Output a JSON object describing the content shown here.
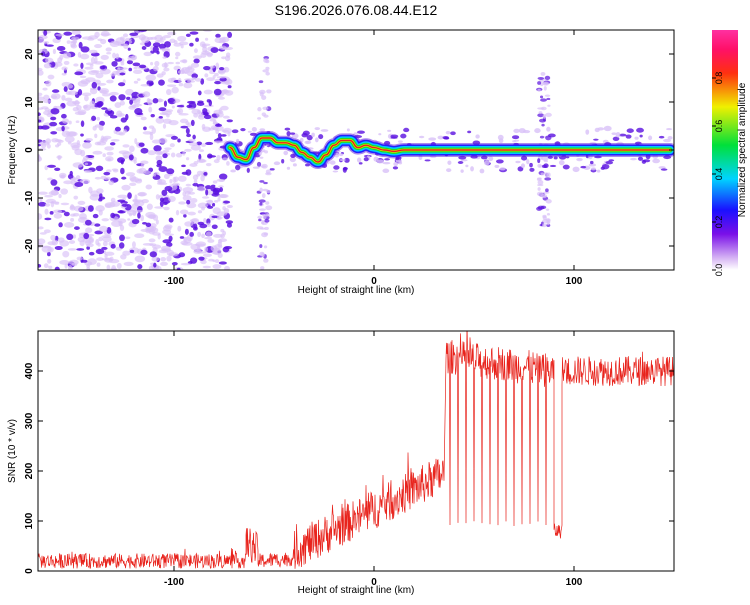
{
  "page": {
    "title": "S196.2026.076.08.44.E12"
  },
  "colors": {
    "snr_line": "#e8231c",
    "axis": "#000000",
    "ridge_core": "#e8231c",
    "ridge_mid": "#22dd22",
    "ridge_edge": "#2020ff",
    "speckle_dark": "#5a10e0",
    "speckle_light": "#d8c0f8"
  },
  "chart_data": [
    {
      "id": "spectrogram",
      "type": "heatmap",
      "xlabel": "Height of straight line (km)",
      "ylabel": "Frequency (Hz)",
      "xlim": [
        -168,
        150
      ],
      "ylim": [
        -25,
        25
      ],
      "xticks": [
        -100,
        0,
        100
      ],
      "yticks": [
        -20,
        -10,
        0,
        10,
        20
      ],
      "grid": false,
      "colorbar": {
        "label": "Normalized spectral amplitude",
        "range": [
          0,
          1
        ],
        "ticks": [
          "0.0",
          "0.2",
          "0.4",
          "0.6",
          "0.8"
        ],
        "colormap": "rainbow (violet-blue-cyan-green-yellow-red-magenta)"
      },
      "ridge": {
        "x": [
          -72,
          -68,
          -64,
          -60,
          -56,
          -52,
          -48,
          -44,
          -40,
          -36,
          -32,
          -28,
          -24,
          -20,
          -16,
          -12,
          -8,
          -4,
          0,
          5,
          10,
          15,
          20,
          40,
          60,
          80,
          100,
          120,
          148
        ],
        "y": [
          0.5,
          -1.5,
          -2.0,
          0.5,
          2.5,
          2.5,
          1.5,
          1.5,
          1.0,
          -0.5,
          -1.5,
          -2.5,
          -1.0,
          1.0,
          2.0,
          2.0,
          0.5,
          1.0,
          0.5,
          0.0,
          -0.3,
          0.0,
          0.0,
          0.0,
          0.0,
          0.0,
          0.0,
          0.0,
          0.0
        ]
      },
      "noise_region": {
        "x": [
          -168,
          -72
        ],
        "y": [
          -25,
          25
        ]
      },
      "vertical_streaks": [
        {
          "x": -55,
          "ymin": -25,
          "ymax": 20
        },
        {
          "x": 85,
          "ymin": -16,
          "ymax": 16
        }
      ]
    },
    {
      "id": "snr",
      "type": "line",
      "xlabel": "Height of straight line (km)",
      "ylabel": "SNR (10 * v/v)",
      "xlim": [
        -168,
        150
      ],
      "ylim": [
        0,
        480
      ],
      "xticks": [
        -100,
        0,
        100
      ],
      "yticks": [
        0,
        100,
        200,
        300,
        400
      ],
      "grid": false,
      "segments": [
        {
          "x": [
            -168,
            -64
          ],
          "level": [
            20,
            20
          ],
          "noise": 15
        },
        {
          "x": [
            -64,
            -58
          ],
          "level": [
            60,
            40
          ],
          "noise": 35
        },
        {
          "x": [
            -58,
            -40
          ],
          "level": [
            20,
            25
          ],
          "noise": 15
        },
        {
          "x": [
            -40,
            35
          ],
          "level": [
            40,
            195
          ],
          "noise": 40
        },
        {
          "x": [
            36,
            90
          ],
          "level": [
            430,
            400
          ],
          "noise": 35
        },
        {
          "x": [
            90,
            94
          ],
          "level": [
            80,
            80
          ],
          "noise": 15
        },
        {
          "x": [
            94,
            150
          ],
          "level": [
            400,
            400
          ],
          "noise": 30
        }
      ],
      "dropouts": {
        "x": [
          38,
          42,
          46,
          50,
          54,
          58,
          62,
          66,
          70,
          74,
          78,
          82,
          86
        ],
        "min": 90
      }
    }
  ]
}
